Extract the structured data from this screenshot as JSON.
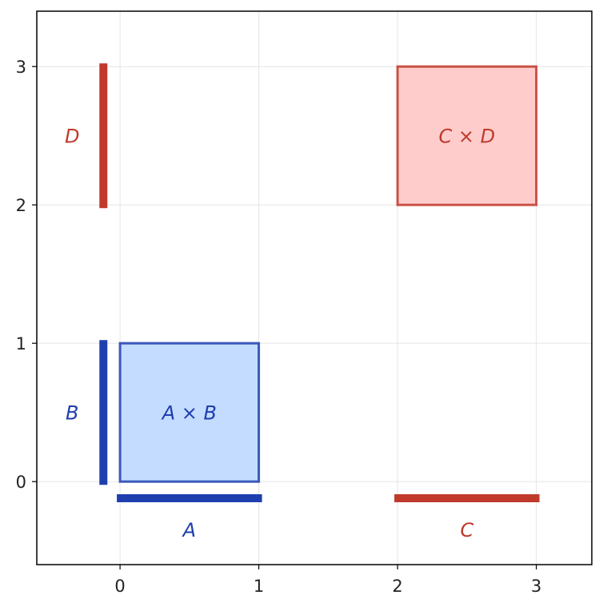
{
  "chart_data": {
    "type": "diagram",
    "xlim": [
      -0.6,
      3.4
    ],
    "ylim": [
      -0.6,
      3.4
    ],
    "grid": true,
    "x_ticks": [
      "0",
      "1",
      "2",
      "3"
    ],
    "y_ticks": [
      "0",
      "1",
      "2",
      "3"
    ],
    "intervals": [
      {
        "name": "A",
        "label": "A",
        "orientation": "horizontal",
        "start": 0,
        "end": 1,
        "at": -0.12,
        "color": "#1f3fae"
      },
      {
        "name": "B",
        "label": "B",
        "orientation": "vertical",
        "start": 0,
        "end": 1,
        "at": -0.12,
        "color": "#1f3fae"
      },
      {
        "name": "C",
        "label": "C",
        "orientation": "horizontal",
        "start": 2,
        "end": 3,
        "at": -0.12,
        "color": "#c0392b"
      },
      {
        "name": "D",
        "label": "D",
        "orientation": "vertical",
        "start": 2,
        "end": 3,
        "at": -0.12,
        "color": "#c0392b"
      }
    ],
    "products": [
      {
        "name": "A-times-B",
        "label": "A × B",
        "x": [
          0,
          1
        ],
        "y": [
          0,
          1
        ],
        "fill": "#c3dcff",
        "stroke": "#1f3fae"
      },
      {
        "name": "C-times-D",
        "label": "C × D",
        "x": [
          2,
          3
        ],
        "y": [
          2,
          3
        ],
        "fill": "#ffcccc",
        "stroke": "#c0392b"
      }
    ]
  }
}
